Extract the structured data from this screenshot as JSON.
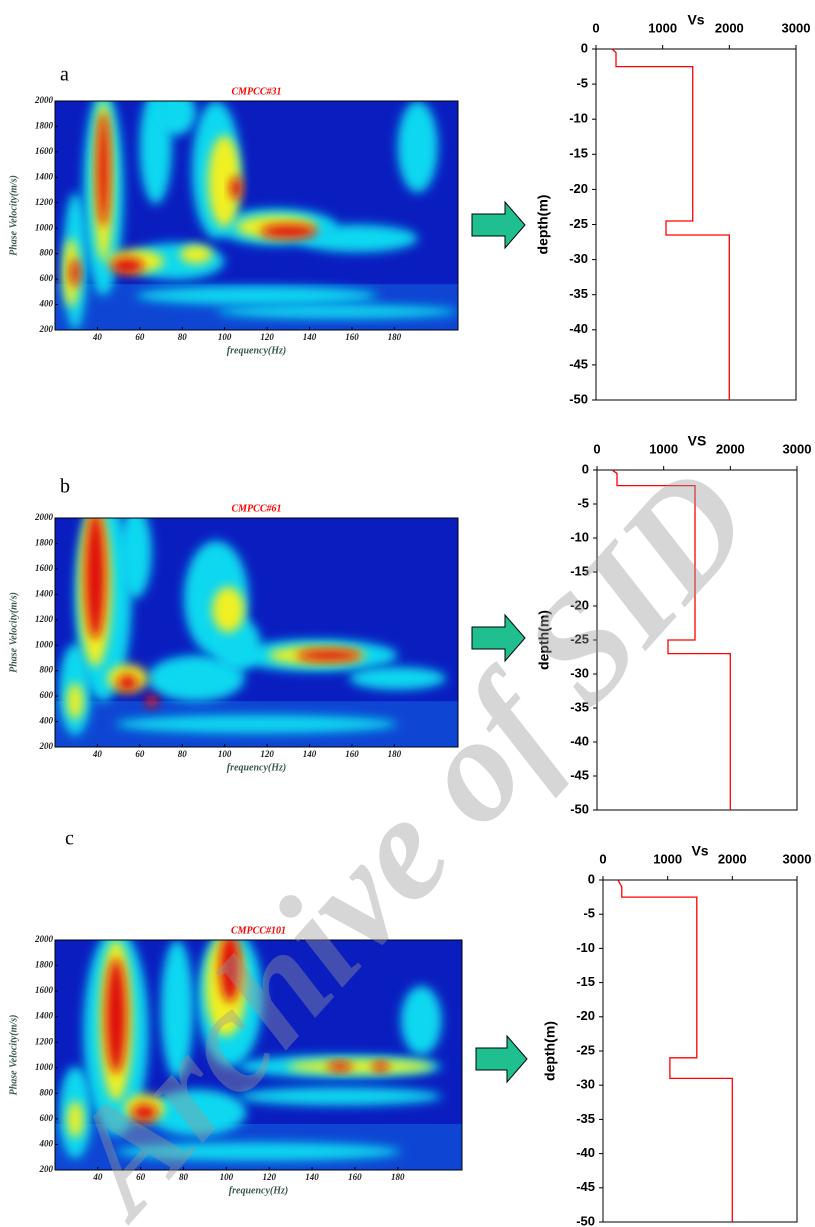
{
  "watermark": "Archive of SID",
  "chart_data": [
    {
      "type": "heatmap",
      "label": "a",
      "title": "CMPCC#31",
      "xlabel": "frequency(Hz)",
      "ylabel": "Phase Velocity(m/s)",
      "xlim": [
        20,
        210
      ],
      "xticks": [
        40,
        60,
        80,
        100,
        120,
        140,
        160,
        180
      ],
      "ylim": [
        200,
        2000
      ],
      "yticks": [
        200,
        400,
        600,
        800,
        1000,
        1200,
        1400,
        1600,
        1800,
        2000
      ]
    },
    {
      "type": "line",
      "title": "Vs",
      "ylabel": "depth(m)",
      "color": "#ff0000",
      "xlim": [
        0,
        3000
      ],
      "xticks": [
        0,
        1000,
        2000,
        3000
      ],
      "ylim": [
        -50,
        0
      ],
      "yticks": [
        0,
        -5,
        -10,
        -15,
        -20,
        -25,
        -30,
        -35,
        -40,
        -45,
        -50
      ],
      "x": [
        240,
        300,
        300,
        1450,
        1450,
        1050,
        1050,
        2000,
        2000
      ],
      "y": [
        0,
        -0.5,
        -2.5,
        -2.5,
        -24.5,
        -24.5,
        -26.5,
        -26.5,
        -50
      ]
    },
    {
      "type": "heatmap",
      "label": "b",
      "title": "CMPCC#61",
      "xlabel": "frequency(Hz)",
      "ylabel": "Phase Velocity(m/s)",
      "xlim": [
        20,
        210
      ],
      "xticks": [
        40,
        60,
        80,
        100,
        120,
        140,
        160,
        180
      ],
      "ylim": [
        200,
        2000
      ],
      "yticks": [
        200,
        400,
        600,
        800,
        1000,
        1200,
        1400,
        1600,
        1800,
        2000
      ]
    },
    {
      "type": "line",
      "title": "VS",
      "ylabel": "depth(m)",
      "color": "#ff0000",
      "xlim": [
        0,
        3000
      ],
      "xticks": [
        0,
        1000,
        2000,
        3000
      ],
      "ylim": [
        -50,
        0
      ],
      "yticks": [
        0,
        -5,
        -10,
        -15,
        -20,
        -25,
        -30,
        -35,
        -40,
        -45,
        -50
      ],
      "x": [
        225,
        300,
        300,
        1470,
        1470,
        1065,
        1065,
        2000,
        2000
      ],
      "y": [
        0,
        -0.5,
        -2.3,
        -2.3,
        -25,
        -25,
        -27,
        -27,
        -50
      ]
    },
    {
      "type": "heatmap",
      "label": "c",
      "title": "CMPCC#101",
      "xlabel": "frequency(Hz)",
      "ylabel": "Phase Velocity(m/s)",
      "xlim": [
        20,
        210
      ],
      "xticks": [
        40,
        60,
        80,
        100,
        120,
        140,
        160,
        180
      ],
      "ylim": [
        200,
        2000
      ],
      "yticks": [
        200,
        400,
        600,
        800,
        1000,
        1200,
        1400,
        1600,
        1800,
        2000
      ]
    },
    {
      "type": "line",
      "title": "Vs",
      "ylabel": "depth(m)",
      "color": "#ff0000",
      "xlim": [
        0,
        3000
      ],
      "xticks": [
        0,
        1000,
        2000,
        3000
      ],
      "ylim": [
        -50,
        0
      ],
      "yticks": [
        0,
        -5,
        -10,
        -15,
        -20,
        -25,
        -30,
        -35,
        -40,
        -45,
        -50
      ],
      "x": [
        230,
        290,
        290,
        1450,
        1450,
        1035,
        1035,
        2000,
        2000
      ],
      "y": [
        0,
        -1,
        -2.5,
        -2.5,
        -26,
        -26,
        -29,
        -29,
        -50
      ]
    }
  ]
}
